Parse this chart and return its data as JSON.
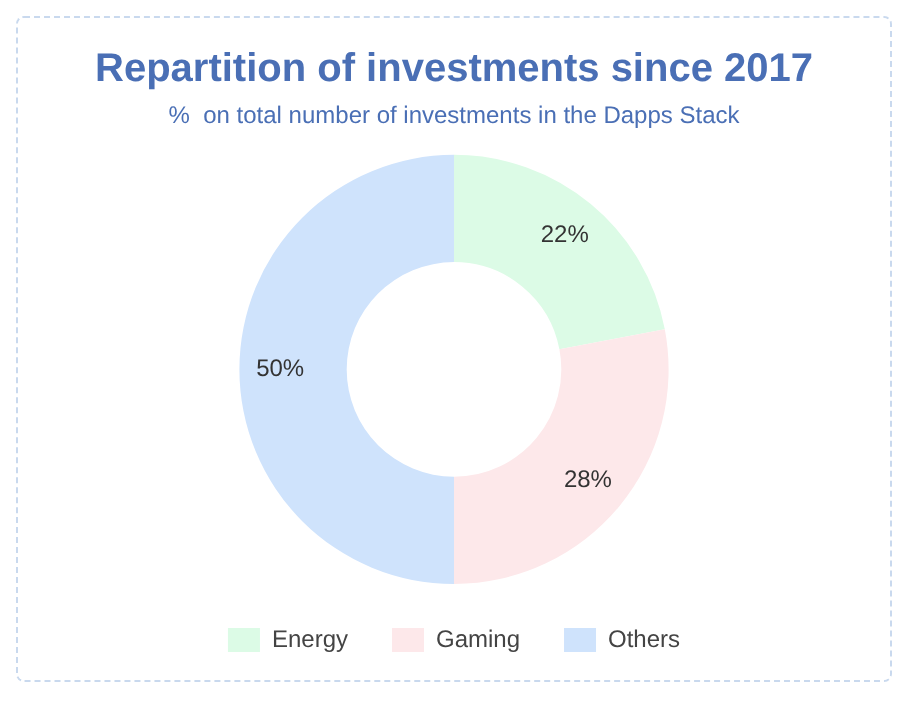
{
  "chart_data": {
    "type": "donut",
    "title": "Repartition of investments since 2017",
    "subtitle": "%  on total number of investments in the Dapps Stack",
    "categories": [
      "Energy",
      "Gaming",
      "Others"
    ],
    "values": [
      22,
      28,
      50
    ],
    "value_labels": [
      "22%",
      "28%",
      "50%"
    ],
    "colors": [
      "#dcfbe6",
      "#fde8ea",
      "#cfe3fc"
    ],
    "legend": "bottom"
  }
}
